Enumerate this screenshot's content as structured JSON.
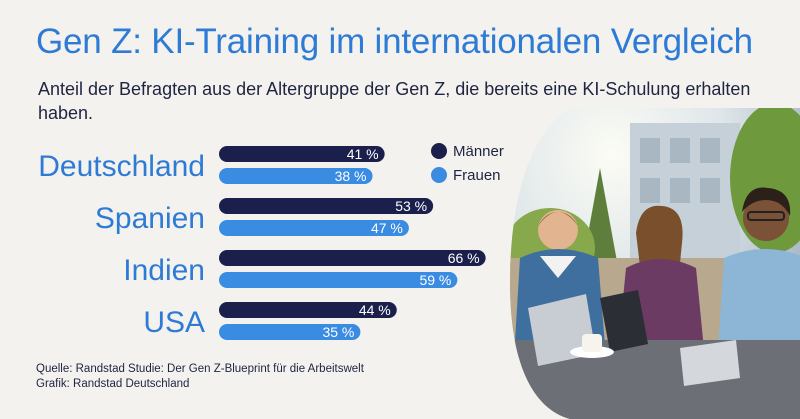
{
  "title": "Gen Z: KI-Training im internationalen Vergleich",
  "subtitle": "Anteil der Befragten aus der Altergruppe der Gen Z, die bereits eine KI-Schulung erhalten haben.",
  "source_line": "Quelle: Randstad Studie: Der Gen Z-Blueprint für die Arbeitswelt",
  "graphic_line": "Grafik: Randstad Deutschland",
  "colors": {
    "maenner": "#1b1f4b",
    "frauen": "#3a8be2",
    "accent_text": "#2e7bd6"
  },
  "chart_data": {
    "type": "bar",
    "orientation": "horizontal",
    "categories": [
      "Deutschland",
      "Spanien",
      "Indien",
      "USA"
    ],
    "series": [
      {
        "name": "Männer",
        "values": [
          41,
          53,
          66,
          44
        ],
        "labels": [
          "41 %",
          "53 %",
          "66 %",
          "44 %"
        ],
        "color": "#1b1f4b"
      },
      {
        "name": "Frauen",
        "values": [
          38,
          47,
          59,
          35
        ],
        "labels": [
          "38 %",
          "47 %",
          "59 %",
          "35 %"
        ],
        "color": "#3a8be2"
      }
    ],
    "unit": "%",
    "xlim": [
      0,
      100
    ],
    "legend": "top-right"
  }
}
